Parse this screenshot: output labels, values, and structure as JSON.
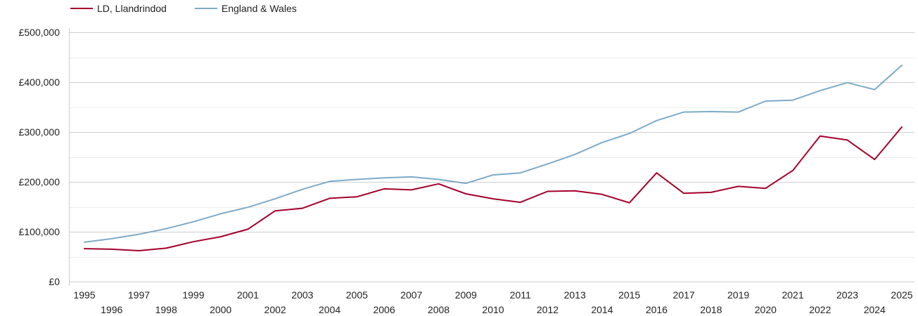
{
  "chart_data": {
    "type": "line",
    "title": "",
    "xlabel": "",
    "ylabel": "",
    "x": [
      1995,
      1996,
      1997,
      1998,
      1999,
      2000,
      2001,
      2002,
      2003,
      2004,
      2005,
      2006,
      2007,
      2008,
      2009,
      2010,
      2011,
      2012,
      2013,
      2014,
      2015,
      2016,
      2017,
      2018,
      2019,
      2020,
      2021,
      2022,
      2023,
      2024,
      2025
    ],
    "x_tick_labels": [
      "1995",
      "1996",
      "1997",
      "1998",
      "1999",
      "2000",
      "2001",
      "2002",
      "2003",
      "2004",
      "2005",
      "2006",
      "2007",
      "2008",
      "2009",
      "2010",
      "2011",
      "2012",
      "2013",
      "2014",
      "2015",
      "2016",
      "2017",
      "2018",
      "2019",
      "2020",
      "2021",
      "2022",
      "2023",
      "2024",
      "2025"
    ],
    "ylim": [
      0,
      500000
    ],
    "y_ticks": [
      0,
      100000,
      200000,
      300000,
      400000,
      500000
    ],
    "y_tick_labels": [
      "£0",
      "£100,000",
      "£200,000",
      "£300,000",
      "£400,000",
      "£500,000"
    ],
    "grid": true,
    "legend_position": "top-left",
    "series": [
      {
        "name": "LD, Llandrindod",
        "color": "#a5002c",
        "values": [
          66000,
          65000,
          62000,
          67000,
          80000,
          90000,
          105000,
          142000,
          147000,
          167000,
          170000,
          186000,
          184000,
          196000,
          176000,
          166000,
          159000,
          181000,
          182000,
          175000,
          158000,
          218000,
          177000,
          179000,
          191000,
          187000,
          223000,
          292000,
          284000,
          245000,
          310000
        ]
      },
      {
        "name": "England & Wales",
        "color": "#7eaac8",
        "values": [
          79000,
          86000,
          95000,
          106000,
          120000,
          136000,
          149000,
          166000,
          185000,
          201000,
          205000,
          208000,
          210000,
          205000,
          197000,
          214000,
          218000,
          236000,
          255000,
          279000,
          297000,
          323000,
          340000,
          341000,
          340000,
          362000,
          364000,
          383000,
          399000,
          385000,
          434000
        ]
      }
    ]
  }
}
